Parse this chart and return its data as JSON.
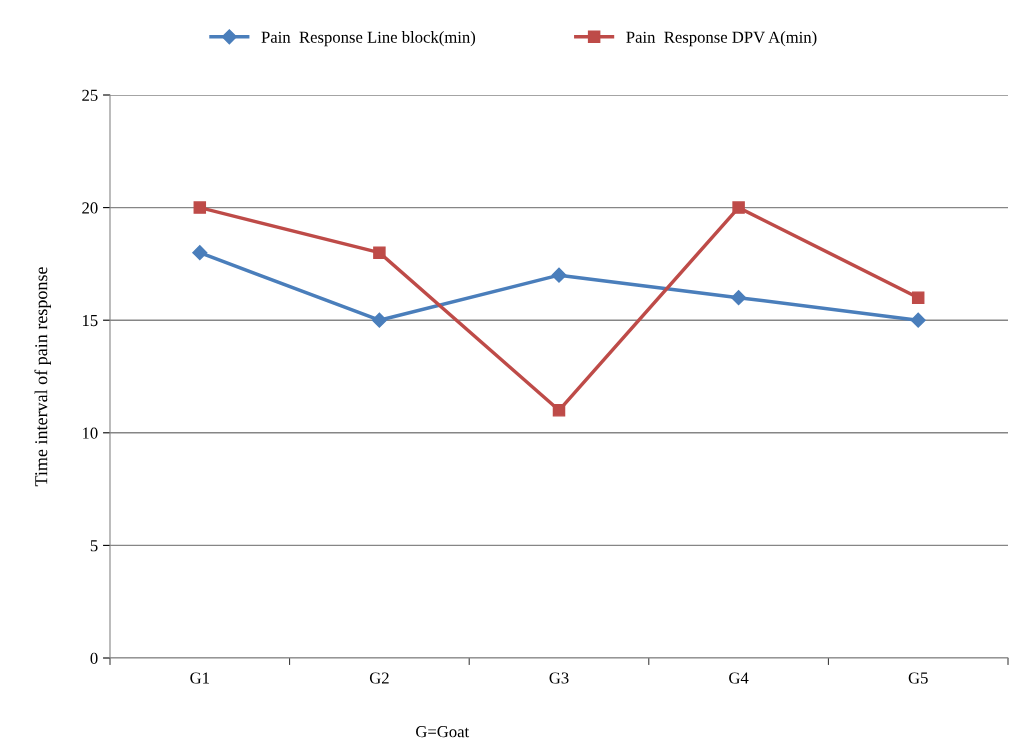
{
  "chart_data": {
    "type": "line",
    "xlabel": "G=Goat",
    "ylabel": "Time interval of pain response",
    "categories": [
      "G1",
      "G2",
      "G3",
      "G4",
      "G5"
    ],
    "series": [
      {
        "name": "Pain  Response Line block(min)",
        "color": "#4a7ebb",
        "marker": "diamond",
        "values": [
          18,
          15,
          17,
          16,
          15
        ]
      },
      {
        "name": "Pain  Response DPV A(min)",
        "color": "#be4b48",
        "marker": "square",
        "values": [
          20,
          18,
          11,
          20,
          16
        ]
      }
    ],
    "ylim": [
      0,
      25
    ],
    "yticks": [
      0,
      5,
      10,
      15,
      20,
      25
    ],
    "grid": "y",
    "legend": "top",
    "line_style": "solid"
  }
}
